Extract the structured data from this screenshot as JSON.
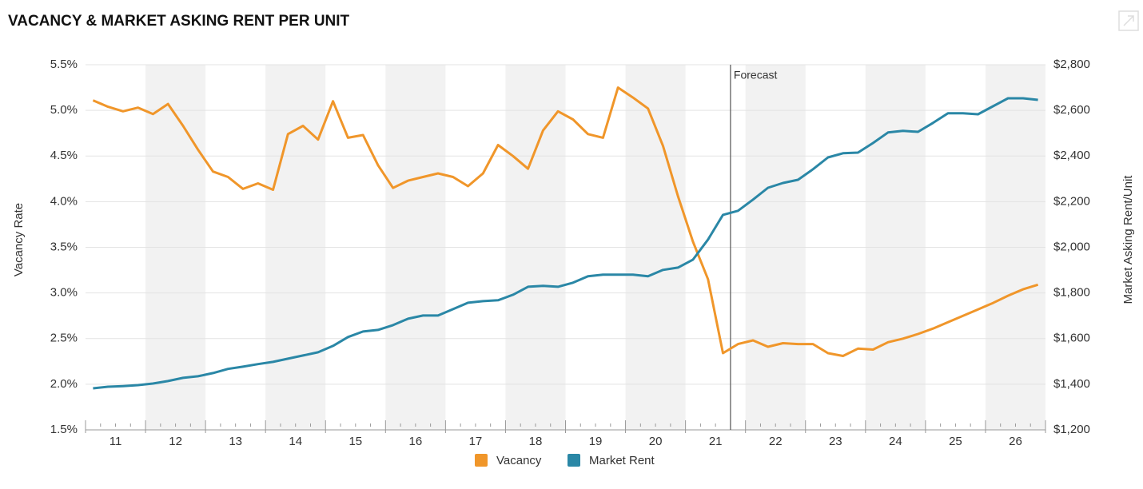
{
  "chart_data": {
    "type": "line",
    "title": "VACANCY & MARKET ASKING RENT PER UNIT",
    "y_label": "Vacancy Rate",
    "y2_label": "Market Asking Rent/Unit",
    "categories": [
      "11",
      null,
      null,
      null,
      "12",
      null,
      null,
      null,
      "13",
      null,
      null,
      null,
      "14",
      null,
      null,
      null,
      "15",
      null,
      null,
      null,
      "16",
      null,
      null,
      null,
      "17",
      null,
      null,
      null,
      "18",
      null,
      null,
      null,
      "19",
      null,
      null,
      null,
      "20",
      null,
      null,
      null,
      "21",
      null,
      null,
      null,
      "22",
      null,
      null,
      null,
      "23",
      null,
      null,
      null,
      "24",
      null,
      null,
      null,
      "25",
      null,
      null,
      null,
      "26",
      null,
      null,
      null
    ],
    "series": [
      {
        "name": "Vacancy",
        "color": "#f0962a",
        "axis": "y",
        "values": [
          5.11,
          5.04,
          4.99,
          5.03,
          4.96,
          5.07,
          4.83,
          4.57,
          4.33,
          4.27,
          4.14,
          4.2,
          4.13,
          4.74,
          4.83,
          4.68,
          5.1,
          4.7,
          4.73,
          4.4,
          4.15,
          4.23,
          4.27,
          4.31,
          4.27,
          4.17,
          4.31,
          4.62,
          4.5,
          4.36,
          4.78,
          4.99,
          4.9,
          4.74,
          4.7,
          5.25,
          5.14,
          5.02,
          4.61,
          4.06,
          3.56,
          3.15,
          2.34,
          2.44,
          2.48,
          2.41,
          2.45,
          2.44,
          2.44,
          2.34,
          2.31,
          2.39,
          2.38,
          2.46,
          2.5,
          2.55,
          2.61,
          2.68,
          2.75,
          2.82,
          2.89,
          2.97,
          3.04,
          3.09
        ]
      },
      {
        "name": "Market Rent",
        "color": "#2a87a6",
        "axis": "y2",
        "values": [
          1382,
          1389,
          1392,
          1396,
          1403,
          1414,
          1428,
          1435,
          1449,
          1467,
          1477,
          1488,
          1498,
          1512,
          1526,
          1540,
          1568,
          1607,
          1631,
          1638,
          1659,
          1687,
          1701,
          1701,
          1729,
          1757,
          1764,
          1768,
          1792,
          1827,
          1831,
          1827,
          1845,
          1873,
          1880,
          1880,
          1880,
          1873,
          1901,
          1911,
          1946,
          2034,
          2142,
          2160,
          2209,
          2261,
          2282,
          2296,
          2342,
          2394,
          2412,
          2415,
          2457,
          2503,
          2510,
          2506,
          2545,
          2587,
          2587,
          2583,
          2618,
          2653,
          2653,
          2646
        ]
      }
    ],
    "ylim": [
      1.5,
      5.5
    ],
    "yticks": [
      {
        "value": 1.5,
        "label": "1.5%"
      },
      {
        "value": 2,
        "label": "2.0%"
      },
      {
        "value": 2.5,
        "label": "2.5%"
      },
      {
        "value": 3,
        "label": "3.0%"
      },
      {
        "value": 3.5,
        "label": "3.5%"
      },
      {
        "value": 4,
        "label": "4.0%"
      },
      {
        "value": 4.5,
        "label": "4.5%"
      },
      {
        "value": 5,
        "label": "5.0%"
      },
      {
        "value": 5.5,
        "label": "5.5%"
      }
    ],
    "y2lim": [
      1200,
      2800
    ],
    "y2ticks": [
      {
        "value": 1200,
        "label": "$1,200"
      },
      {
        "value": 1400,
        "label": "$1,400"
      },
      {
        "value": 1600,
        "label": "$1,600"
      },
      {
        "value": 1800,
        "label": "$1,800"
      },
      {
        "value": 2000,
        "label": "$2,000"
      },
      {
        "value": 2200,
        "label": "$2,200"
      },
      {
        "value": 2400,
        "label": "$2,400"
      },
      {
        "value": 2600,
        "label": "$2,600"
      },
      {
        "value": 2800,
        "label": "$2,800"
      }
    ],
    "grid": true,
    "legend": "bottom",
    "forecast": {
      "label": "Forecast",
      "x": 42.5
    }
  }
}
